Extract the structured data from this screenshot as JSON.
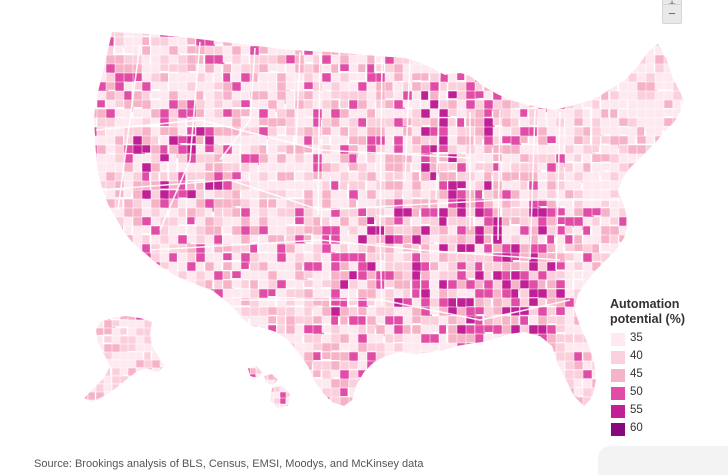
{
  "map": {
    "legend": {
      "title": "Automation potential (%)",
      "items": [
        {
          "label": "35",
          "color": "#fde9ef"
        },
        {
          "label": "40",
          "color": "#fbd0dc"
        },
        {
          "label": "45",
          "color": "#f6b2c6"
        },
        {
          "label": "50",
          "color": "#e04ca6"
        },
        {
          "label": "55",
          "color": "#c01f96"
        },
        {
          "label": "60",
          "color": "#86087c"
        }
      ]
    },
    "source": "Source: Brookings analysis of BLS, Census, EMSI, Moodys, and McKinsey data",
    "zoom": {
      "in": "+",
      "out": "−"
    },
    "colors": {
      "border": "#ffffff",
      "no_data": "#d9d9d9",
      "scale": [
        "#fde9ef",
        "#fbd0dc",
        "#f6b2c6",
        "#e04ca6",
        "#c01f96",
        "#86087c"
      ]
    }
  }
}
